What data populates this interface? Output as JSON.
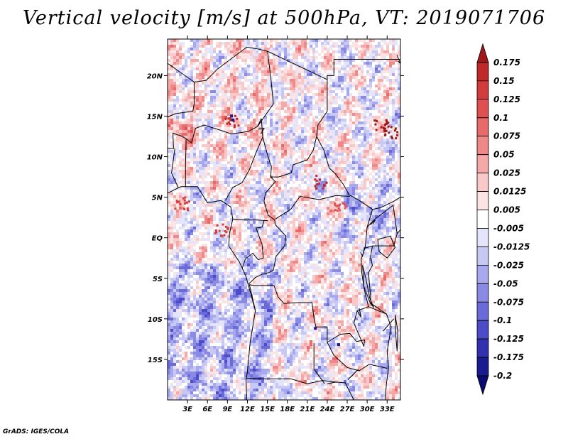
{
  "chart_data": {
    "type": "heatmap",
    "title": "Vertical velocity [m/s] at 500hPa, VT: 2019071706",
    "lon_range": [
      0,
      35
    ],
    "lat_range": [
      -20,
      24.5
    ],
    "x_ticks": [
      {
        "value": 3,
        "label": "3E"
      },
      {
        "value": 6,
        "label": "6E"
      },
      {
        "value": 9,
        "label": "9E"
      },
      {
        "value": 12,
        "label": "12E"
      },
      {
        "value": 15,
        "label": "15E"
      },
      {
        "value": 18,
        "label": "18E"
      },
      {
        "value": 21,
        "label": "21E"
      },
      {
        "value": 24,
        "label": "24E"
      },
      {
        "value": 27,
        "label": "27E"
      },
      {
        "value": 30,
        "label": "30E"
      },
      {
        "value": 33,
        "label": "33E"
      }
    ],
    "y_ticks": [
      {
        "value": 20,
        "label": "20N"
      },
      {
        "value": 15,
        "label": "15N"
      },
      {
        "value": 10,
        "label": "10N"
      },
      {
        "value": 5,
        "label": "5N"
      },
      {
        "value": 0,
        "label": "EQ"
      },
      {
        "value": -5,
        "label": "5S"
      },
      {
        "value": -10,
        "label": "10S"
      },
      {
        "value": -15,
        "label": "15S"
      }
    ],
    "colorbar": {
      "levels": [
        "0.175",
        "0.15",
        "0.125",
        "0.1",
        "0.075",
        "0.05",
        "0.025",
        "0.0125",
        "0.005",
        "-0.005",
        "-0.0125",
        "-0.025",
        "-0.05",
        "-0.075",
        "-0.1",
        "-0.125",
        "-0.175",
        "-0.2"
      ],
      "colors": [
        "#a01818",
        "#c02a2a",
        "#d23c3c",
        "#e05050",
        "#e86a6a",
        "#ef8888",
        "#f5a8a8",
        "#f9c8c8",
        "#fce4e4",
        "#ffffff",
        "#e4e4fa",
        "#c8c8f5",
        "#a8a8ee",
        "#8a8ae4",
        "#6a6ad8",
        "#4c4cc8",
        "#3030b0",
        "#1a1a90",
        "#0a0a70"
      ]
    },
    "features": [
      "coastlines",
      "country borders",
      "lakes"
    ]
  },
  "credit": "GrADS: IGES/COLA"
}
